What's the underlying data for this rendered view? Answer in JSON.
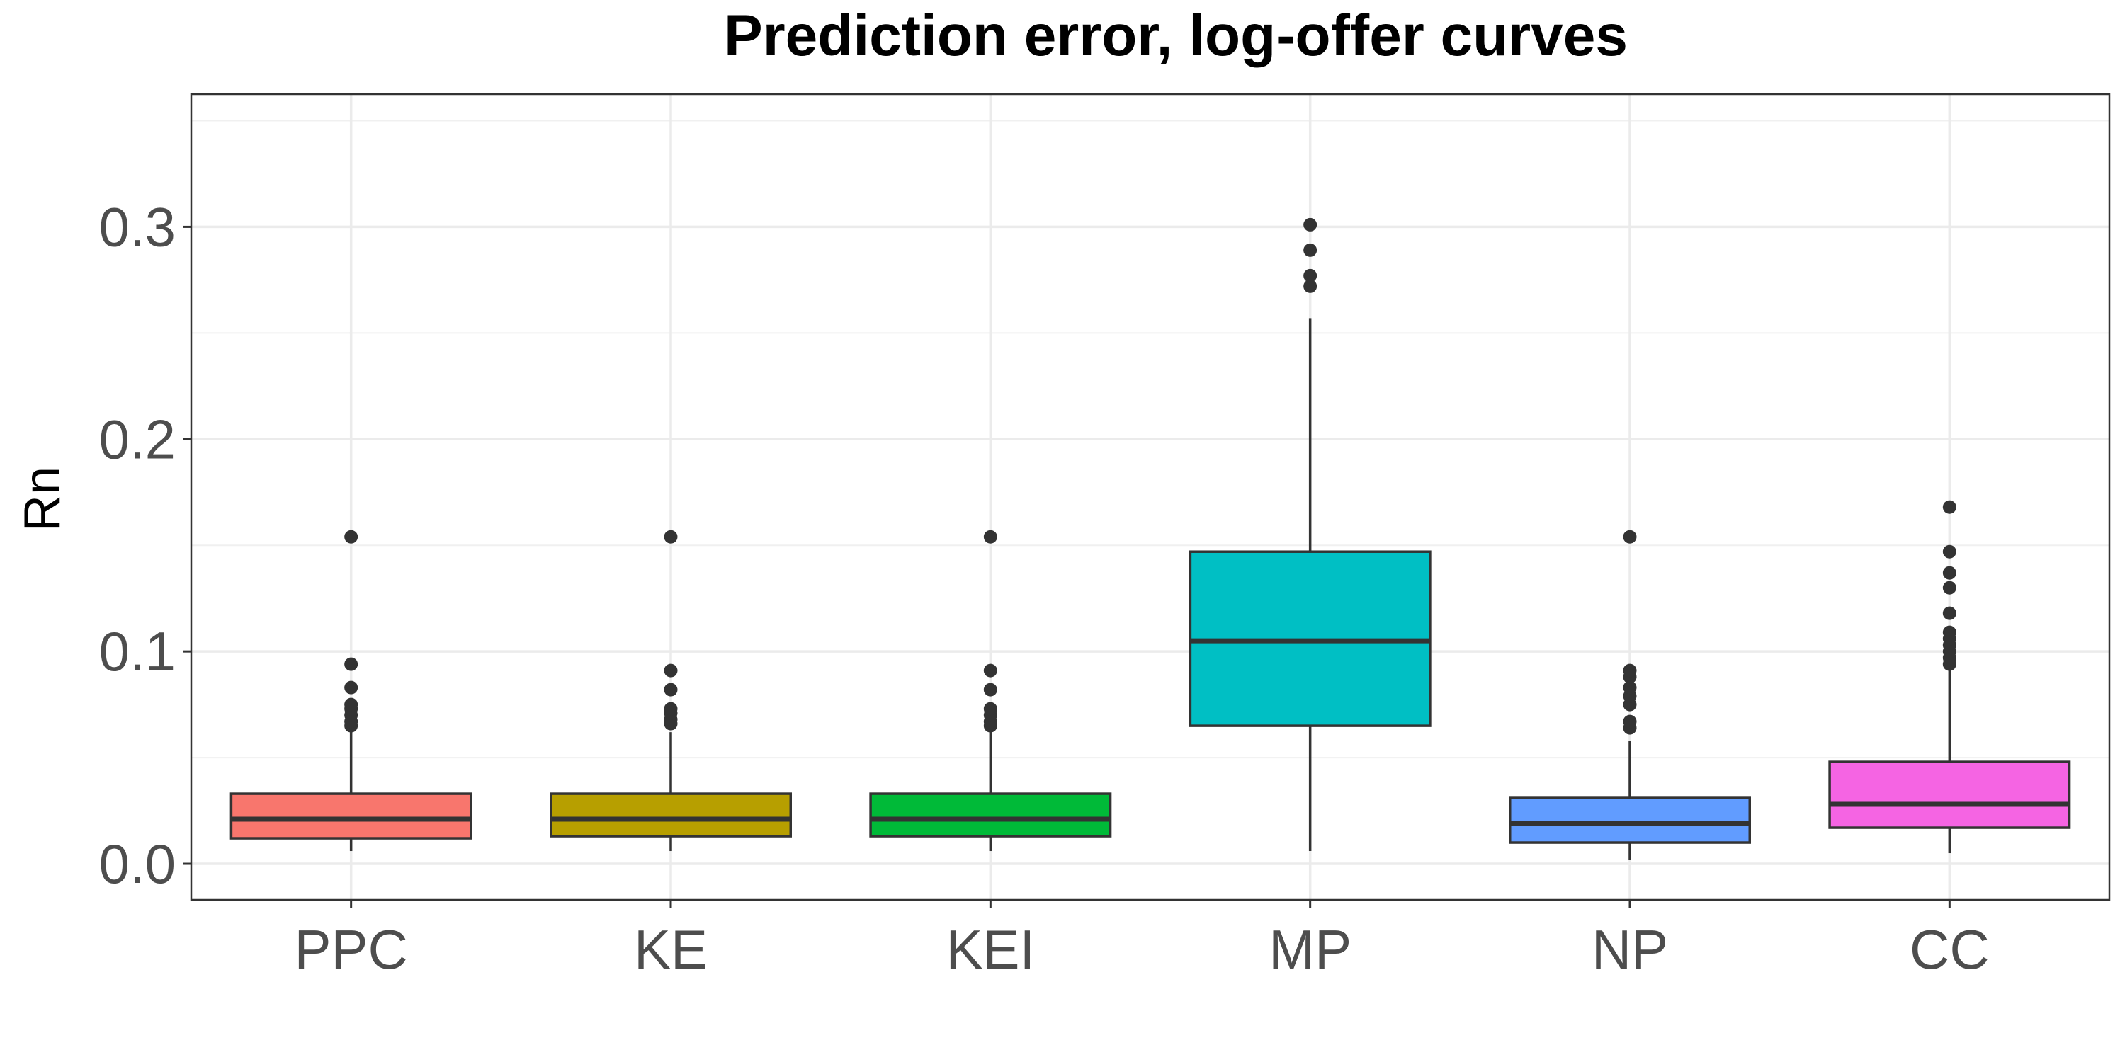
{
  "chart_data": {
    "type": "boxplot",
    "title": "Prediction error, log-offer curves",
    "xlabel": "",
    "ylabel": "Rn",
    "ylim": [
      -0.017,
      0.3625
    ],
    "y_ticks": [
      0.0,
      0.1,
      0.2,
      0.3
    ],
    "y_tick_labels": [
      "0.0",
      "0.1",
      "0.2",
      "0.3"
    ],
    "grid": true,
    "legend": "none",
    "categories": [
      "PPC",
      "KE",
      "KEI",
      "MP",
      "NP",
      "CC"
    ],
    "colors": [
      "#F8766D",
      "#B79F00",
      "#00BA38",
      "#00BFC4",
      "#619CFF",
      "#F564E3"
    ],
    "boxes": [
      {
        "category": "PPC",
        "whisker_low": 0.006,
        "q1": 0.012,
        "median": 0.021,
        "q3": 0.033,
        "whisker_high": 0.062,
        "outliers": [
          0.065,
          0.067,
          0.07,
          0.073,
          0.075,
          0.083,
          0.094,
          0.154
        ]
      },
      {
        "category": "KE",
        "whisker_low": 0.006,
        "q1": 0.013,
        "median": 0.021,
        "q3": 0.033,
        "whisker_high": 0.062,
        "outliers": [
          0.066,
          0.068,
          0.071,
          0.073,
          0.082,
          0.091,
          0.154
        ]
      },
      {
        "category": "KEI",
        "whisker_low": 0.006,
        "q1": 0.013,
        "median": 0.021,
        "q3": 0.033,
        "whisker_high": 0.062,
        "outliers": [
          0.065,
          0.067,
          0.07,
          0.073,
          0.082,
          0.091,
          0.154
        ]
      },
      {
        "category": "MP",
        "whisker_low": 0.006,
        "q1": 0.065,
        "median": 0.105,
        "q3": 0.147,
        "whisker_high": 0.257,
        "outliers": [
          0.272,
          0.277,
          0.289,
          0.301
        ]
      },
      {
        "category": "NP",
        "whisker_low": 0.002,
        "q1": 0.01,
        "median": 0.019,
        "q3": 0.031,
        "whisker_high": 0.058,
        "outliers": [
          0.064,
          0.067,
          0.075,
          0.079,
          0.083,
          0.088,
          0.091,
          0.154
        ]
      },
      {
        "category": "CC",
        "whisker_low": 0.005,
        "q1": 0.017,
        "median": 0.028,
        "q3": 0.048,
        "whisker_high": 0.091,
        "outliers": [
          0.094,
          0.097,
          0.1,
          0.103,
          0.106,
          0.109,
          0.118,
          0.13,
          0.137,
          0.147,
          0.168
        ]
      }
    ]
  }
}
